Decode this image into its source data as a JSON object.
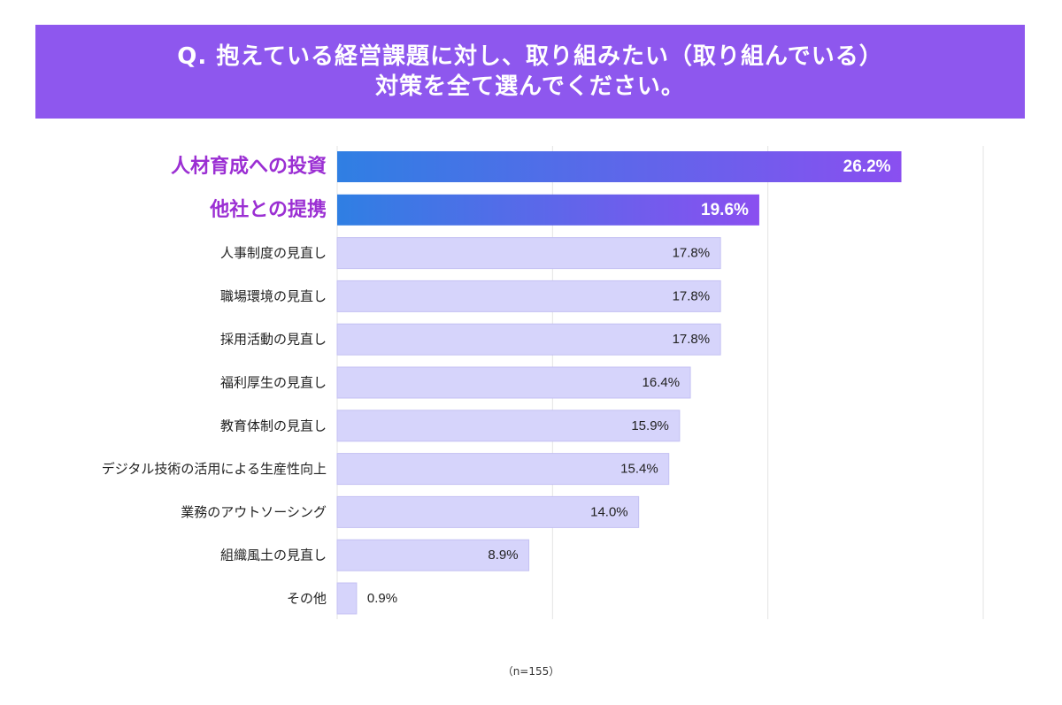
{
  "title": {
    "line1": "Q. 抱えている経営課題に対し、取り組みたい（取り組んでいる）",
    "line2": "対策を全て選んでください。"
  },
  "footnote": "（n=155）",
  "colors": {
    "banner": "#8e57ee",
    "highlight_start": "#2f7fe3",
    "highlight_end": "#8a4ff0",
    "highlight_label": "#9b2fd3",
    "normal_bar": "#d6d4fb",
    "normal_bar_border": "#c4c1f3",
    "gridline": "#e3e3e3",
    "text": "#222222"
  },
  "chart_data": {
    "type": "bar",
    "orientation": "horizontal",
    "categories": [
      "人材育成への投資",
      "他社との提携",
      "人事制度の見直し",
      "職場環境の見直し",
      "採用活動の見直し",
      "福利厚生の見直し",
      "教育体制の見直し",
      "デジタル技術の活用による生産性向上",
      "業務のアウトソーシング",
      "組織風土の見直し",
      "その他"
    ],
    "values": [
      26.2,
      19.6,
      17.8,
      17.8,
      17.8,
      16.4,
      15.9,
      15.4,
      14.0,
      8.9,
      0.9
    ],
    "value_labels": [
      "26.2%",
      "19.6%",
      "17.8%",
      "17.8%",
      "17.8%",
      "16.4%",
      "15.9%",
      "15.4%",
      "14.0%",
      "8.9%",
      "0.9%"
    ],
    "highlighted": [
      true,
      true,
      false,
      false,
      false,
      false,
      false,
      false,
      false,
      false,
      false
    ],
    "xlim": [
      0,
      30
    ],
    "gridlines": [
      0,
      10,
      20,
      30
    ],
    "unit": "%",
    "n": 155
  }
}
